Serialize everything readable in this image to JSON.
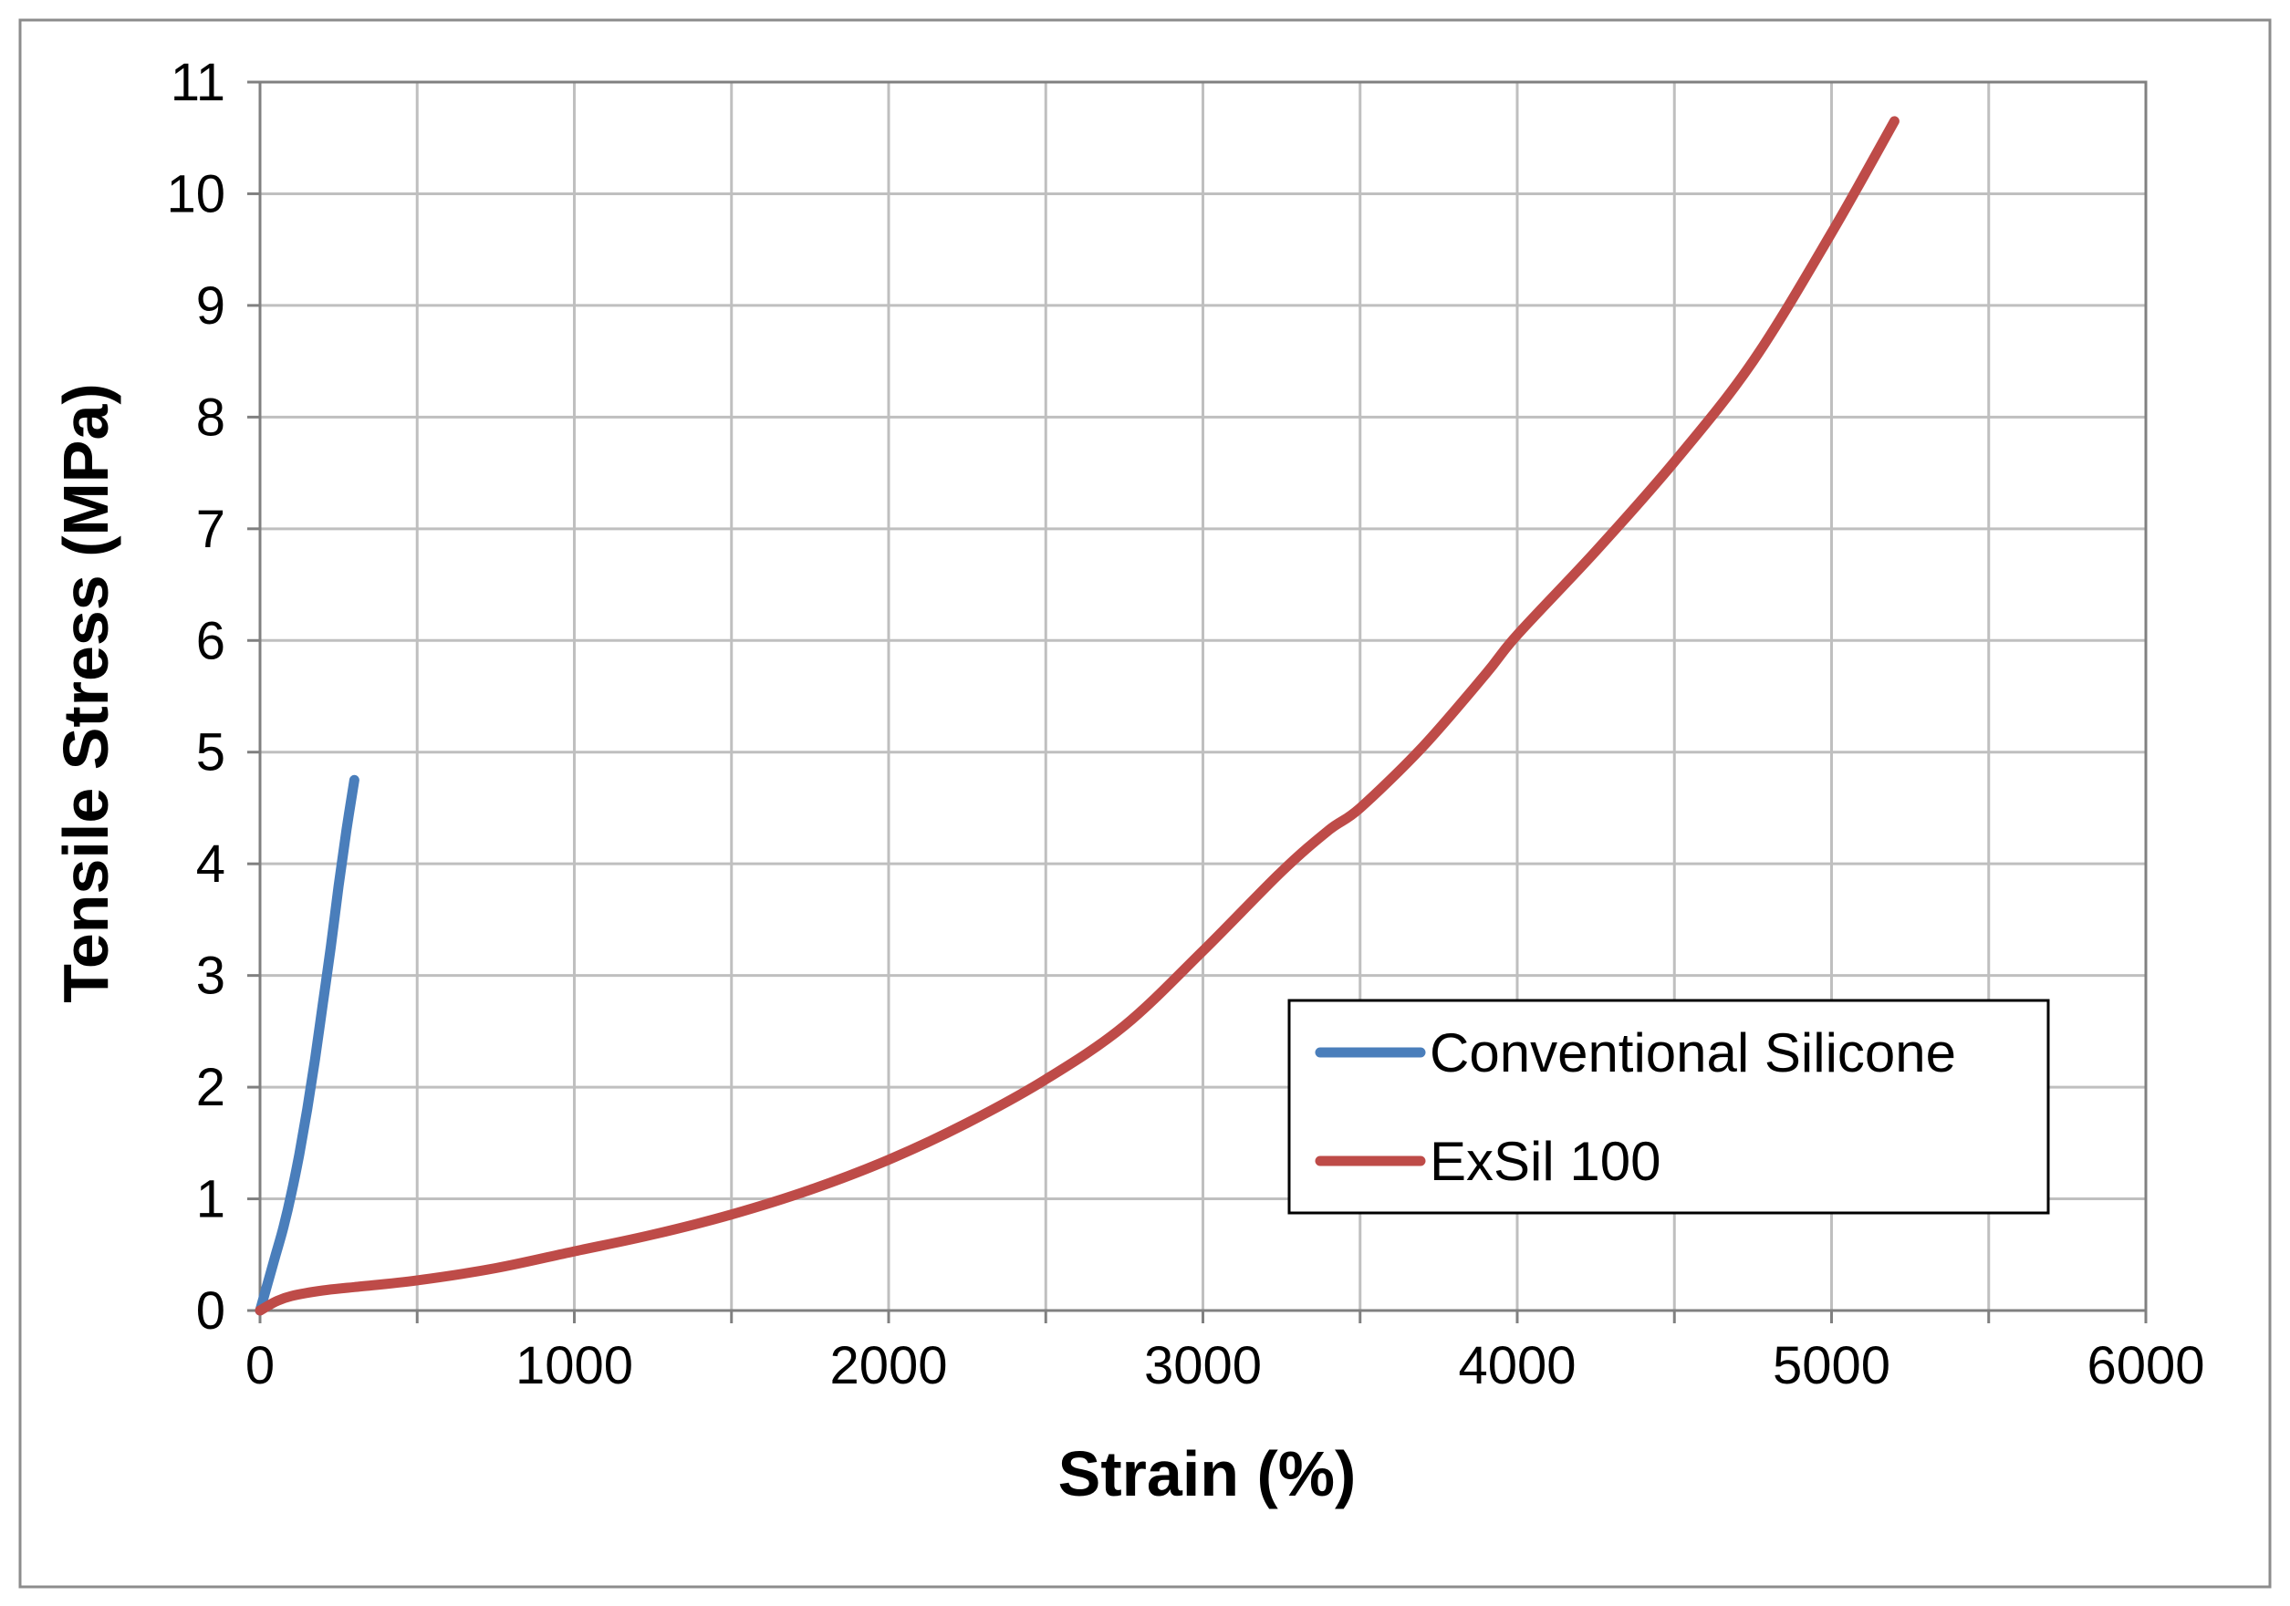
{
  "chart_data": {
    "type": "line",
    "title": "",
    "xlabel": "Strain (%)",
    "ylabel": "Tensile Stress (MPa)",
    "xlim": [
      0,
      6000
    ],
    "ylim": [
      0,
      11
    ],
    "xticks": [
      0,
      500,
      1000,
      1500,
      2000,
      2500,
      3000,
      3500,
      4000,
      4500,
      5000,
      5500,
      6000
    ],
    "xtick_labels": [
      "0",
      "1000",
      "2000",
      "3000",
      "4000",
      "5000",
      "6000"
    ],
    "yticks": [
      0,
      1,
      2,
      3,
      4,
      5,
      6,
      7,
      8,
      9,
      10,
      11
    ],
    "ytick_labels": [
      "0",
      "1",
      "2",
      "3",
      "4",
      "5",
      "6",
      "7",
      "8",
      "9",
      "10",
      "11"
    ],
    "grid": true,
    "legend_position": "lower-right",
    "series": [
      {
        "name": "Conventional Silicone",
        "color": "#4a7ebb",
        "x": [
          0,
          25,
          50,
          75,
          100,
          125,
          150,
          175,
          200,
          225,
          250,
          275,
          300
        ],
        "y": [
          0,
          0.25,
          0.5,
          0.75,
          1.05,
          1.4,
          1.8,
          2.25,
          2.75,
          3.25,
          3.8,
          4.3,
          4.75
        ]
      },
      {
        "name": "ExSil 100",
        "color": "#be4b48",
        "x": [
          0,
          50,
          100,
          200,
          300,
          500,
          750,
          1000,
          1250,
          1500,
          1750,
          2000,
          2250,
          2500,
          2750,
          3000,
          3250,
          3400,
          3500,
          3700,
          3900,
          4000,
          4250,
          4500,
          4750,
          5000,
          5200
        ],
        "y": [
          0,
          0.08,
          0.13,
          0.18,
          0.21,
          0.27,
          0.38,
          0.53,
          0.68,
          0.86,
          1.08,
          1.35,
          1.68,
          2.07,
          2.55,
          3.22,
          3.93,
          4.3,
          4.5,
          5.05,
          5.7,
          6.05,
          6.8,
          7.6,
          8.5,
          9.65,
          10.65
        ]
      }
    ]
  }
}
